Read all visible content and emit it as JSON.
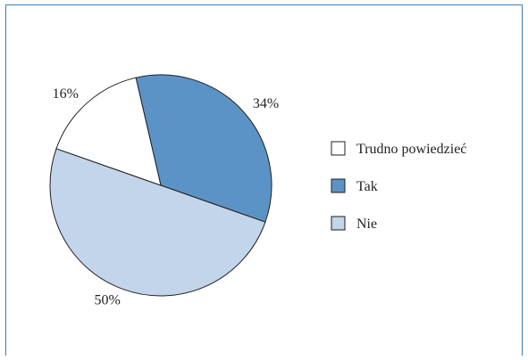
{
  "chart_data": {
    "type": "pie",
    "slices": [
      {
        "label": "Tak",
        "value": 34,
        "display": "34%",
        "color": "#5b93c6"
      },
      {
        "label": "Nie",
        "value": 50,
        "display": "50%",
        "color": "#c2d5ea"
      },
      {
        "label": "Trudno powiedzieć",
        "value": 16,
        "display": "16%",
        "color": "#ffffff"
      }
    ],
    "legend": {
      "placement": "right",
      "items": [
        {
          "label": "Trudno powiedzieć",
          "color": "#ffffff"
        },
        {
          "label": "Tak",
          "color": "#5b93c6"
        },
        {
          "label": "Nie",
          "color": "#c2d5ea"
        }
      ]
    },
    "edge_color": "#231f20",
    "frame_color": "#3f7fb0"
  }
}
